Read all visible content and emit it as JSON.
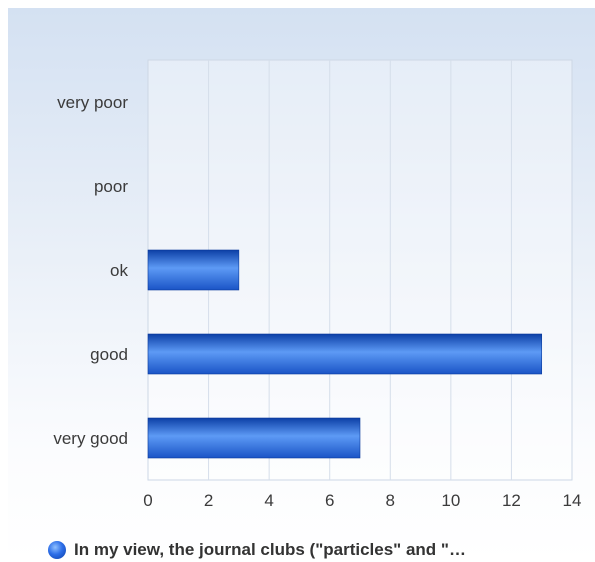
{
  "chart_data": {
    "type": "bar",
    "orientation": "horizontal",
    "categories": [
      "very poor",
      "poor",
      "ok",
      "good",
      "very good"
    ],
    "series": [
      {
        "name": "In my view, the journal clubs (\"particles\" and \"…",
        "values": [
          0,
          0,
          3,
          13,
          7
        ]
      }
    ],
    "xlim": [
      0,
      14
    ],
    "xticks": [
      "0",
      "2",
      "4",
      "6",
      "8",
      "10",
      "12",
      "14"
    ],
    "grid": true,
    "legend_position": "bottom",
    "colors": {
      "bar_dark": "#0c3fa6",
      "bar_light": "#5d9af5",
      "gridline": "#d5deea",
      "axis_text": "#3b3b3b"
    }
  },
  "legend": {
    "label": "In my view, the journal clubs (\"particles\" and \"…"
  }
}
